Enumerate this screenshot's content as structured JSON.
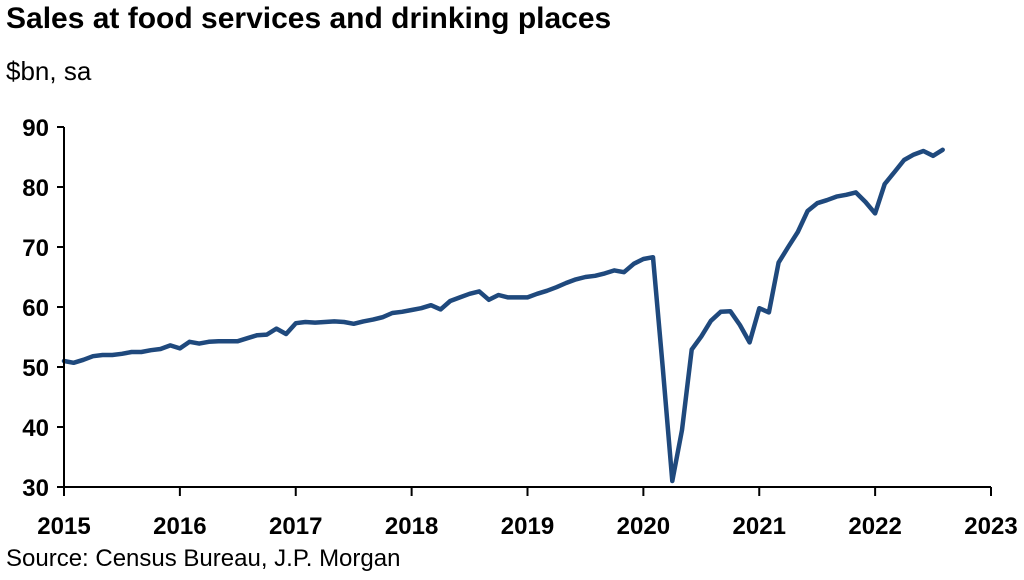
{
  "title": "Sales at food services and drinking places",
  "subtitle": "$bn, sa",
  "source": "Source: Census Bureau, J.P. Morgan",
  "colors": {
    "line": "#1f497d",
    "axis": "#000000"
  },
  "chart_data": {
    "type": "line",
    "title": "Sales at food services and drinking places",
    "ylabel": "$bn, sa",
    "xlim": [
      2015,
      2023
    ],
    "ylim": [
      30,
      90
    ],
    "yticks": [
      30,
      40,
      50,
      60,
      70,
      80,
      90
    ],
    "xticks": [
      2015,
      2016,
      2017,
      2018,
      2019,
      2020,
      2021,
      2022,
      2023
    ],
    "xtick_labels": [
      "2015",
      "2016",
      "2017",
      "2018",
      "2019",
      "2020",
      "2021",
      "2022",
      "2023"
    ],
    "ytick_labels": [
      "30",
      "40",
      "50",
      "60",
      "70",
      "80",
      "90"
    ],
    "grid": false,
    "legend": "none",
    "series": [
      {
        "values": [
          [
            2015.0,
            51.0
          ],
          [
            2015.083,
            50.7
          ],
          [
            2015.167,
            51.2
          ],
          [
            2015.25,
            51.8
          ],
          [
            2015.333,
            52.0
          ],
          [
            2015.417,
            52.0
          ],
          [
            2015.5,
            52.2
          ],
          [
            2015.583,
            52.5
          ],
          [
            2015.667,
            52.5
          ],
          [
            2015.75,
            52.8
          ],
          [
            2015.833,
            53.0
          ],
          [
            2015.917,
            53.6
          ],
          [
            2016.0,
            53.1
          ],
          [
            2016.083,
            54.2
          ],
          [
            2016.167,
            53.9
          ],
          [
            2016.25,
            54.2
          ],
          [
            2016.333,
            54.3
          ],
          [
            2016.417,
            54.3
          ],
          [
            2016.5,
            54.3
          ],
          [
            2016.583,
            54.8
          ],
          [
            2016.667,
            55.3
          ],
          [
            2016.75,
            55.4
          ],
          [
            2016.833,
            56.4
          ],
          [
            2016.917,
            55.5
          ],
          [
            2017.0,
            57.3
          ],
          [
            2017.083,
            57.5
          ],
          [
            2017.167,
            57.4
          ],
          [
            2017.25,
            57.5
          ],
          [
            2017.333,
            57.6
          ],
          [
            2017.417,
            57.5
          ],
          [
            2017.5,
            57.2
          ],
          [
            2017.583,
            57.6
          ],
          [
            2017.667,
            57.9
          ],
          [
            2017.75,
            58.3
          ],
          [
            2017.833,
            59.0
          ],
          [
            2017.917,
            59.2
          ],
          [
            2018.0,
            59.5
          ],
          [
            2018.083,
            59.8
          ],
          [
            2018.167,
            60.3
          ],
          [
            2018.25,
            59.6
          ],
          [
            2018.333,
            61.0
          ],
          [
            2018.417,
            61.6
          ],
          [
            2018.5,
            62.2
          ],
          [
            2018.583,
            62.6
          ],
          [
            2018.667,
            61.2
          ],
          [
            2018.75,
            62.0
          ],
          [
            2018.833,
            61.6
          ],
          [
            2018.917,
            61.6
          ],
          [
            2019.0,
            61.6
          ],
          [
            2019.083,
            62.2
          ],
          [
            2019.167,
            62.7
          ],
          [
            2019.25,
            63.3
          ],
          [
            2019.333,
            64.0
          ],
          [
            2019.417,
            64.6
          ],
          [
            2019.5,
            65.0
          ],
          [
            2019.583,
            65.2
          ],
          [
            2019.667,
            65.6
          ],
          [
            2019.75,
            66.1
          ],
          [
            2019.833,
            65.8
          ],
          [
            2019.917,
            67.2
          ],
          [
            2020.0,
            68.0
          ],
          [
            2020.083,
            68.3
          ],
          [
            2020.167,
            50.0
          ],
          [
            2020.25,
            31.0
          ],
          [
            2020.333,
            39.5
          ],
          [
            2020.417,
            52.9
          ],
          [
            2020.5,
            55.1
          ],
          [
            2020.583,
            57.7
          ],
          [
            2020.667,
            59.2
          ],
          [
            2020.75,
            59.3
          ],
          [
            2020.833,
            57.0
          ],
          [
            2020.917,
            54.1
          ],
          [
            2021.0,
            59.8
          ],
          [
            2021.083,
            59.1
          ],
          [
            2021.167,
            67.4
          ],
          [
            2021.25,
            70.0
          ],
          [
            2021.333,
            72.5
          ],
          [
            2021.417,
            76.0
          ],
          [
            2021.5,
            77.3
          ],
          [
            2021.583,
            77.8
          ],
          [
            2021.667,
            78.4
          ],
          [
            2021.75,
            78.7
          ],
          [
            2021.833,
            79.1
          ],
          [
            2021.917,
            77.5
          ],
          [
            2022.0,
            75.6
          ],
          [
            2022.083,
            80.5
          ],
          [
            2022.167,
            82.5
          ],
          [
            2022.25,
            84.5
          ],
          [
            2022.333,
            85.4
          ],
          [
            2022.417,
            86.0
          ],
          [
            2022.5,
            85.2
          ],
          [
            2022.583,
            86.2
          ]
        ]
      }
    ]
  }
}
